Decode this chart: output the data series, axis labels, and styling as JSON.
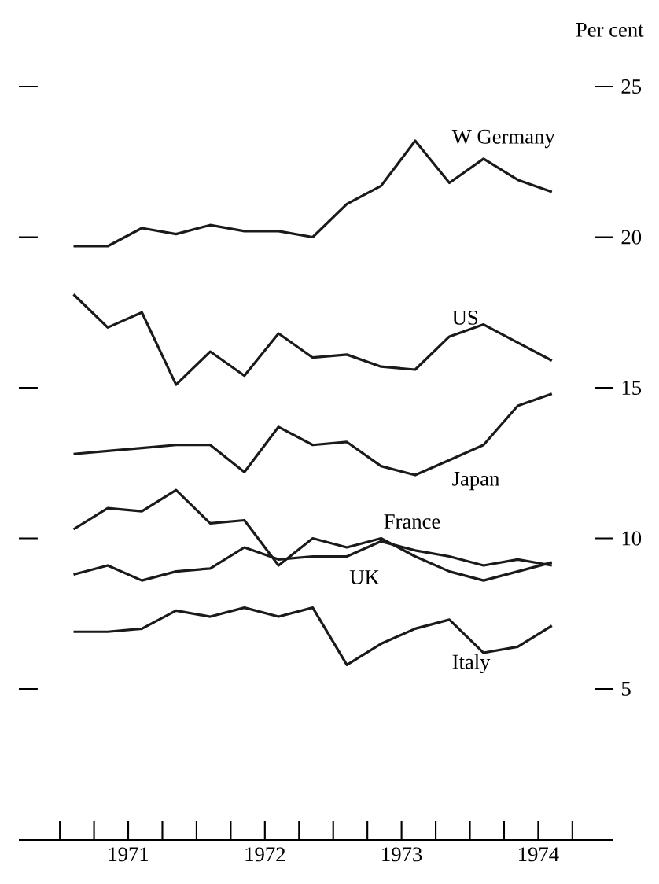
{
  "chart_data": {
    "type": "line",
    "ylabel": "Per cent",
    "x": [
      1971.1,
      1971.35,
      1971.6,
      1971.85,
      1972.1,
      1972.35,
      1972.6,
      1972.85,
      1973.1,
      1973.35,
      1973.6,
      1973.85,
      1974.1,
      1974.35,
      1974.6
    ],
    "series": [
      {
        "name": "W Germany",
        "color": "#1a1a1a",
        "values": [
          19.7,
          19.7,
          20.3,
          20.1,
          20.4,
          20.2,
          20.2,
          20.0,
          21.1,
          21.7,
          23.2,
          21.8,
          22.6,
          21.9,
          21.5
        ]
      },
      {
        "name": "US",
        "color": "#1a1a1a",
        "values": [
          18.1,
          17.0,
          17.5,
          15.1,
          16.2,
          15.4,
          16.8,
          16.0,
          16.1,
          15.7,
          15.6,
          16.7,
          17.1,
          16.5,
          15.9
        ]
      },
      {
        "name": "Japan",
        "color": "#1a1a1a",
        "values": [
          12.8,
          12.9,
          13.0,
          13.1,
          13.1,
          12.2,
          13.7,
          13.1,
          13.2,
          12.4,
          12.1,
          12.6,
          13.1,
          14.4,
          14.8
        ]
      },
      {
        "name": "France",
        "color": "#1a1a1a",
        "values": [
          10.3,
          11.0,
          10.9,
          11.6,
          10.5,
          10.6,
          9.1,
          10.0,
          9.7,
          10.0,
          9.4,
          8.9,
          8.6,
          8.9,
          9.2
        ]
      },
      {
        "name": "UK",
        "color": "#1a1a1a",
        "values": [
          8.8,
          9.1,
          8.6,
          8.9,
          9.0,
          9.7,
          9.3,
          9.4,
          9.4,
          9.9,
          9.6,
          9.4,
          9.1,
          9.3,
          9.1
        ]
      },
      {
        "name": "Italy",
        "color": "#1a1a1a",
        "values": [
          6.9,
          6.9,
          7.0,
          7.6,
          7.4,
          7.7,
          7.4,
          7.7,
          5.8,
          6.5,
          7.0,
          7.3,
          6.2,
          6.4,
          7.1
        ]
      }
    ],
    "xlim": [
      1970.7,
      1975.05
    ],
    "xticks": [
      {
        "value": 1971,
        "label": null
      },
      {
        "value": 1971.25,
        "label": null
      },
      {
        "value": 1971.5,
        "label": "1971"
      },
      {
        "value": 1971.75,
        "label": null
      },
      {
        "value": 1972,
        "label": null
      },
      {
        "value": 1972.25,
        "label": null
      },
      {
        "value": 1972.5,
        "label": "1972"
      },
      {
        "value": 1972.75,
        "label": null
      },
      {
        "value": 1973,
        "label": null
      },
      {
        "value": 1973.25,
        "label": null
      },
      {
        "value": 1973.5,
        "label": "1973"
      },
      {
        "value": 1973.75,
        "label": null
      },
      {
        "value": 1974,
        "label": null
      },
      {
        "value": 1974.25,
        "label": null
      },
      {
        "value": 1974.5,
        "label": "1974"
      },
      {
        "value": 1974.75,
        "label": null
      }
    ],
    "ylim": [
      5,
      25
    ],
    "yticks": [
      5,
      10,
      15,
      20,
      25
    ],
    "line_style": "solid"
  }
}
